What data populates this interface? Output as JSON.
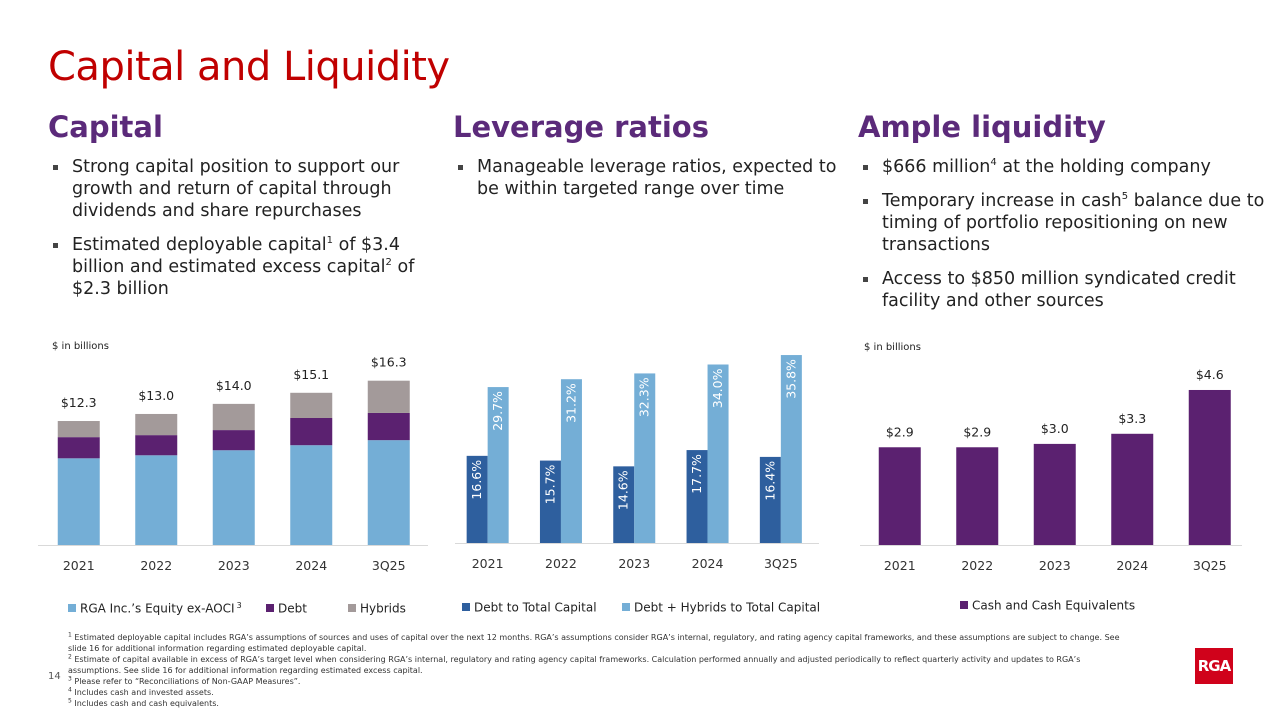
{
  "title": "Capital and Liquidity",
  "page_number": "14",
  "logo": "RGA",
  "sections": [
    {
      "heading": "Capital",
      "bullets": [
        [
          "Strong capital position to support our growth and return of capital through dividends and share repurchases"
        ],
        [
          "Estimated deployable capital",
          {
            "sup": "1"
          },
          " of $3.4 billion and estimated excess capital",
          {
            "sup": "2"
          },
          " of $2.3 billion"
        ]
      ]
    },
    {
      "heading": "Leverage ratios",
      "bullets": [
        [
          "Manageable leverage ratios, expected to be within targeted range over time"
        ]
      ]
    },
    {
      "heading": "Ample liquidity",
      "bullets": [
        [
          "$666 million",
          {
            "sup": "4"
          },
          " at the holding company"
        ],
        [
          "Temporary increase in cash",
          {
            "sup": "5"
          },
          " balance due to timing of portfolio repositioning on new transactions"
        ],
        [
          "Access to $850 million syndicated credit facility and other sources"
        ]
      ]
    }
  ],
  "chart_data": [
    {
      "type": "stacked_bar",
      "unit_note": "$ in billions",
      "categories": [
        "2021",
        "2022",
        "2023",
        "2024",
        "3Q25"
      ],
      "series": [
        {
          "name": "RGA Inc.’s Equity ex-AOCI",
          "name_note": "3",
          "color": "#74aed6",
          "values": [
            8.6,
            8.9,
            9.4,
            9.9,
            10.4
          ]
        },
        {
          "name": "Debt",
          "color": "#5b2170",
          "values": [
            2.1,
            2.0,
            2.0,
            2.7,
            2.7
          ]
        },
        {
          "name": "Hybrids",
          "color": "#a39a9a",
          "values": [
            1.6,
            2.1,
            2.6,
            2.5,
            3.2
          ]
        }
      ],
      "totals": {
        "values": [
          12.3,
          13.0,
          14.0,
          15.1,
          16.3
        ],
        "value_labels": [
          "$12.3",
          "$13.0",
          "$14.0",
          "$15.1",
          "$16.3"
        ]
      }
    },
    {
      "type": "grouped_bar",
      "categories": [
        "2021",
        "2022",
        "2023",
        "2024",
        "3Q25"
      ],
      "series": [
        {
          "name": "Debt to Total Capital",
          "color": "#2e5f9e",
          "values": [
            16.6,
            15.7,
            14.6,
            17.7,
            16.4
          ],
          "value_labels": [
            "16.6%",
            "15.7%",
            "14.6%",
            "17.7%",
            "16.4%"
          ]
        },
        {
          "name": "Debt + Hybrids to Total Capital",
          "color": "#74aed6",
          "values": [
            29.7,
            31.2,
            32.3,
            34.0,
            35.8
          ],
          "value_labels": [
            "29.7%",
            "31.2%",
            "32.3%",
            "34.0%",
            "35.8%"
          ]
        }
      ]
    },
    {
      "type": "bar",
      "unit_note": "$ in billions",
      "categories": [
        "2021",
        "2022",
        "2023",
        "2024",
        "3Q25"
      ],
      "series": [
        {
          "name": "Cash and Cash Equivalents",
          "color": "#5b2170",
          "values": [
            2.9,
            2.9,
            3.0,
            3.3,
            4.6
          ],
          "value_labels": [
            "$2.9",
            "$2.9",
            "$3.0",
            "$3.3",
            "$4.6"
          ]
        }
      ]
    }
  ],
  "footnotes": [
    {
      "mark": "1",
      "text": "Estimated deployable capital includes RGA’s assumptions of sources and uses of capital over the next 12 months. RGA’s assumptions consider RGA’s internal, regulatory, and rating agency capital frameworks, and these assumptions are subject to change. See slide 16 for additional information regarding estimated deployable capital."
    },
    {
      "mark": "2",
      "text": "Estimate of capital available in excess of RGA’s target level when considering RGA’s internal, regulatory and rating agency capital frameworks.  Calculation performed annually and adjusted periodically to reflect quarterly activity and updates to RGA’s assumptions. See slide 16 for additional information regarding estimated excess capital."
    },
    {
      "mark": "3",
      "text": "Please refer to “Reconciliations of Non-GAAP Measures”."
    },
    {
      "mark": "4",
      "text": "Includes cash and invested assets."
    },
    {
      "mark": "5",
      "text": "Includes cash and cash equivalents."
    }
  ]
}
